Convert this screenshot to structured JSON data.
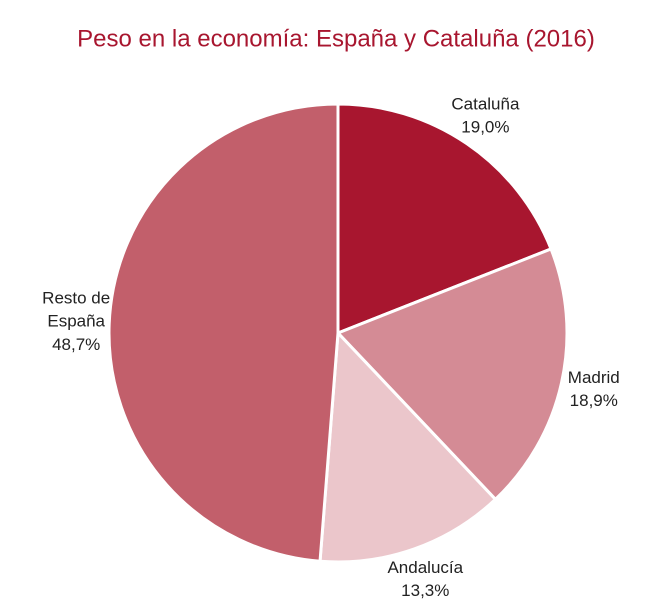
{
  "chart_data": {
    "type": "pie",
    "title": "Peso en la economía: España y Cataluña (2016)",
    "categories": [
      "Cataluña",
      "Madrid",
      "Andalucía",
      "Resto de España"
    ],
    "values": [
      19.0,
      18.9,
      13.3,
      48.7
    ],
    "value_labels": [
      "19,0%",
      "18,9%",
      "13,3%",
      "48,7%"
    ],
    "colors": [
      "#a8162f",
      "#d48b95",
      "#ebc6cb",
      "#c25f6b"
    ]
  }
}
